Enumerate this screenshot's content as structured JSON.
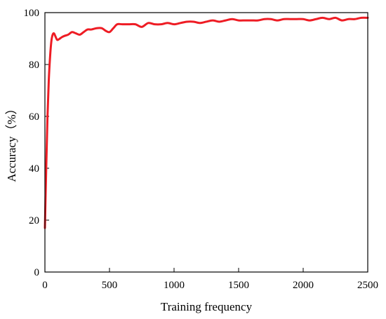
{
  "chart_data": {
    "type": "line",
    "xlabel": "Training frequency",
    "ylabel": "Accuracy（%）",
    "xlim": [
      0,
      2500
    ],
    "ylim": [
      0,
      100
    ],
    "xticks": [
      0,
      500,
      1000,
      1500,
      2000,
      2500
    ],
    "yticks": [
      0,
      20,
      40,
      60,
      80,
      100
    ],
    "xtick_labels": [
      "0",
      "500",
      "1000",
      "1500",
      "2000",
      "2500"
    ],
    "ytick_labels": [
      "0",
      "20",
      "40",
      "60",
      "80",
      "100"
    ],
    "grid": false,
    "legend": "none",
    "series": [
      {
        "color": "#ee1c24",
        "x": [
          0,
          10,
          20,
          30,
          40,
          50,
          60,
          70,
          80,
          95,
          110,
          130,
          150,
          180,
          210,
          240,
          270,
          300,
          330,
          360,
          400,
          440,
          470,
          500,
          530,
          560,
          600,
          650,
          700,
          750,
          800,
          850,
          900,
          950,
          1000,
          1050,
          1100,
          1150,
          1200,
          1250,
          1300,
          1350,
          1400,
          1450,
          1500,
          1550,
          1600,
          1650,
          1700,
          1750,
          1800,
          1850,
          1900,
          1950,
          2000,
          2050,
          2100,
          2150,
          2200,
          2250,
          2300,
          2350,
          2400,
          2450,
          2500
        ],
        "values": [
          17,
          40,
          60,
          74,
          83,
          89,
          91.5,
          92,
          91,
          89.5,
          89.8,
          90.5,
          91,
          91.5,
          92.5,
          92,
          91.5,
          92.5,
          93.5,
          93.5,
          94,
          94,
          93,
          92.5,
          94,
          95.5,
          95.5,
          95.5,
          95.5,
          94.5,
          96,
          95.5,
          95.5,
          96,
          95.5,
          96,
          96.5,
          96.5,
          96,
          96.5,
          97,
          96.5,
          97,
          97.5,
          97,
          97,
          97,
          97,
          97.5,
          97.5,
          97,
          97.5,
          97.5,
          97.5,
          97.5,
          97,
          97.5,
          98,
          97.5,
          98,
          97,
          97.5,
          97.5,
          98,
          98
        ]
      }
    ]
  }
}
